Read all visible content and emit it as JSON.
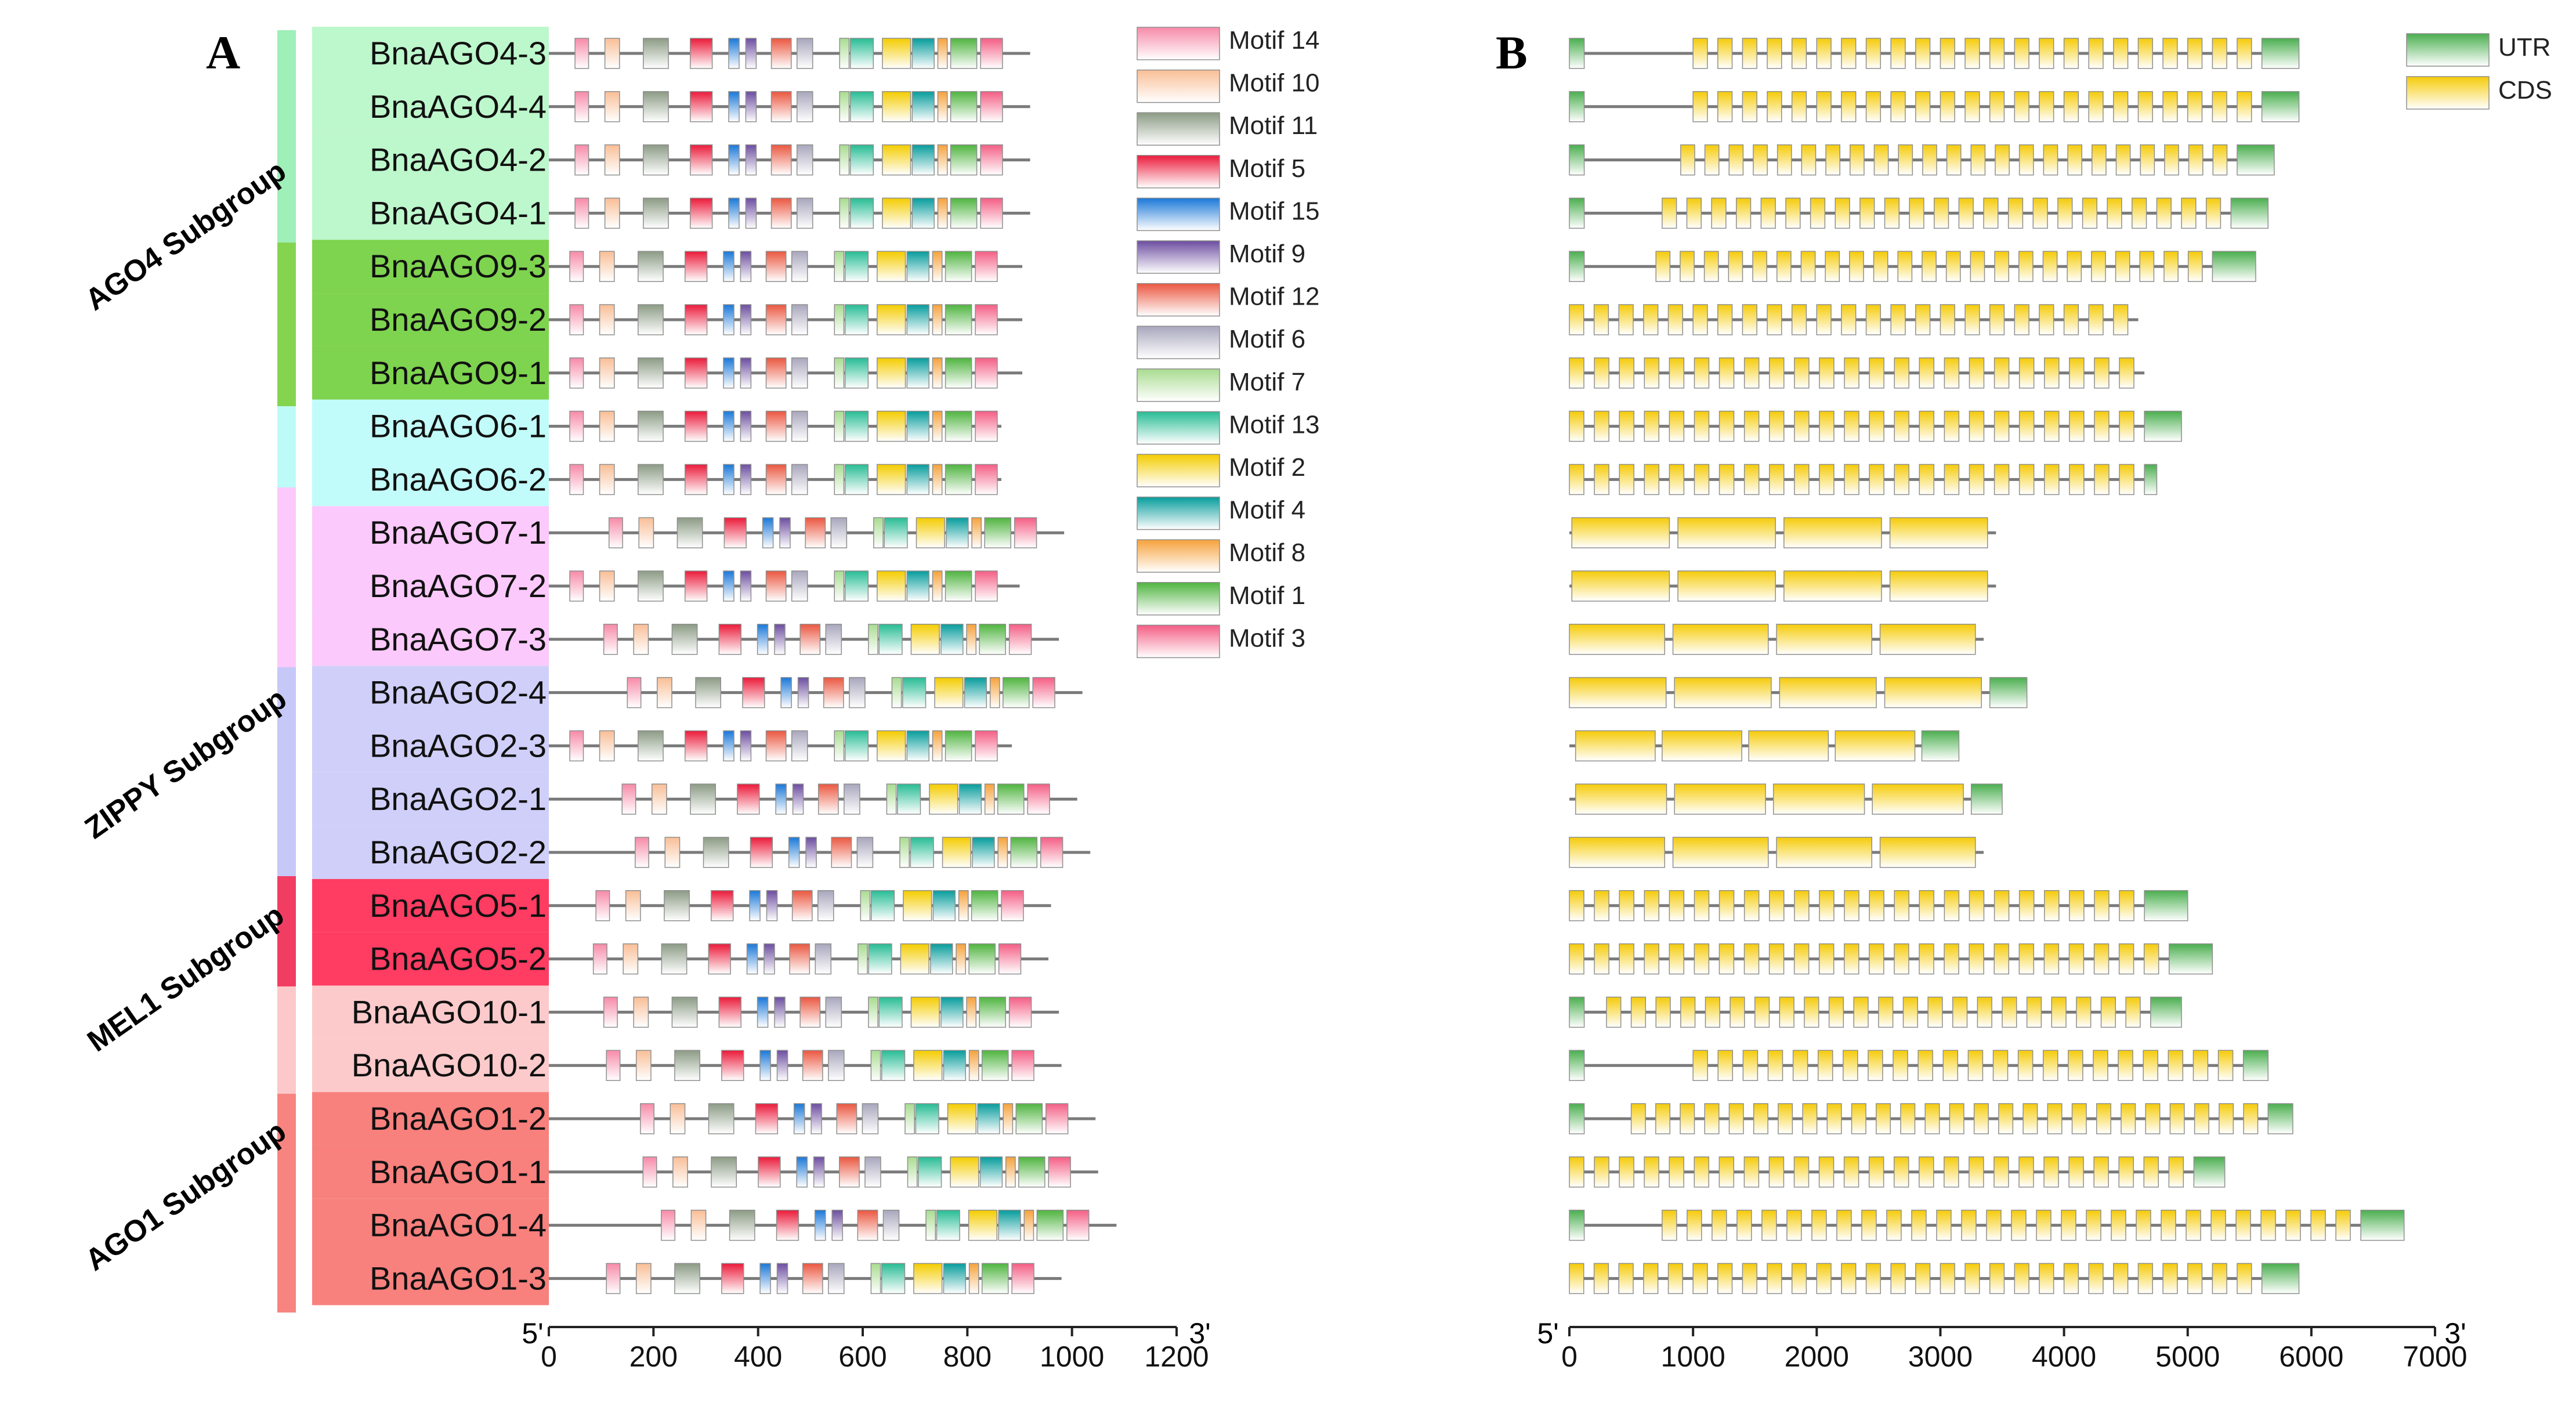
{
  "panels": {
    "a_label": "A",
    "b_label": "B"
  },
  "subgroups": [
    {
      "name": "AGO4 Subgroup",
      "color": "#9EEFB8"
    },
    {
      "name": "ZIPPY Subgroup",
      "color": "#C6C8F7"
    },
    {
      "name": "MEL1 Subgroup",
      "color": "#F23D63"
    },
    {
      "name": "AGO1 Subgroup",
      "color": "#F57F7F"
    }
  ],
  "gene_colors": {
    "AGO4": "#BDF7CC",
    "AGO9": "#7ED34F",
    "AGO6": "#C2FCFA",
    "AGO7": "#FBC9FB",
    "AGO2": "#CFCFFA",
    "AGO5": "#FF3C61",
    "AGO10": "#FCCACB",
    "AGO1": "#F8807D"
  },
  "motif_legend": [
    {
      "name": "Motif 14",
      "color": "#F78AA8"
    },
    {
      "name": "Motif 10",
      "color": "#F9BE96"
    },
    {
      "name": "Motif 11",
      "color": "#8C9B85"
    },
    {
      "name": "Motif 5",
      "color": "#EB1A3A"
    },
    {
      "name": "Motif 15",
      "color": "#1A78D8"
    },
    {
      "name": "Motif 9",
      "color": "#6C4DA0"
    },
    {
      "name": "Motif 12",
      "color": "#EA5740"
    },
    {
      "name": "Motif 6",
      "color": "#A8A6BC"
    },
    {
      "name": "Motif 7",
      "color": "#A8DC90"
    },
    {
      "name": "Motif 13",
      "color": "#27BC94"
    },
    {
      "name": "Motif 2",
      "color": "#F4CC00"
    },
    {
      "name": "Motif 4",
      "color": "#069C9C"
    },
    {
      "name": "Motif 8",
      "color": "#F6A23C"
    },
    {
      "name": "Motif 1",
      "color": "#4FB43F"
    },
    {
      "name": "Motif 3",
      "color": "#F45E85"
    }
  ],
  "structure_legend": [
    {
      "name": "UTR",
      "color": "#4BAE4F"
    },
    {
      "name": "CDS",
      "color": "#F5CB09"
    }
  ],
  "axis_a": {
    "five_prime": "5'",
    "three_prime": "3'",
    "ticks": [
      "0",
      "200",
      "400",
      "600",
      "800",
      "1000",
      "1200"
    ],
    "max": 1200
  },
  "axis_b": {
    "five_prime": "5'",
    "three_prime": "3'",
    "ticks": [
      "0",
      "1000",
      "2000",
      "3000",
      "4000",
      "5000",
      "6000",
      "7000"
    ],
    "max": 7000
  },
  "chart_data": {
    "type": "gene-structure-and-motif-diagram",
    "genes": [
      {
        "name": "BnaAGO4-3",
        "family": "AGO4",
        "protein_length": 920,
        "gene_length": 5900,
        "cds_start": 1000,
        "cds_end": 5600
      },
      {
        "name": "BnaAGO4-4",
        "family": "AGO4",
        "protein_length": 920,
        "gene_length": 5900,
        "cds_start": 1000,
        "cds_end": 5600
      },
      {
        "name": "BnaAGO4-2",
        "family": "AGO4",
        "protein_length": 920,
        "gene_length": 5700,
        "cds_start": 900,
        "cds_end": 5400
      },
      {
        "name": "BnaAGO4-1",
        "family": "AGO4",
        "protein_length": 920,
        "gene_length": 5650,
        "cds_start": 750,
        "cds_end": 5350
      },
      {
        "name": "BnaAGO9-3",
        "family": "AGO9",
        "protein_length": 905,
        "gene_length": 5550,
        "cds_start": 700,
        "cds_end": 5200
      },
      {
        "name": "BnaAGO9-2",
        "family": "AGO9",
        "protein_length": 905,
        "gene_length": 4600,
        "cds_start": 0,
        "cds_end": 4600
      },
      {
        "name": "BnaAGO9-1",
        "family": "AGO9",
        "protein_length": 905,
        "gene_length": 4650,
        "cds_start": 0,
        "cds_end": 4650
      },
      {
        "name": "BnaAGO6-1",
        "family": "AGO6",
        "protein_length": 865,
        "gene_length": 4950,
        "cds_start": 0,
        "cds_end": 4650
      },
      {
        "name": "BnaAGO6-2",
        "family": "AGO6",
        "protein_length": 865,
        "gene_length": 4750,
        "cds_start": 0,
        "cds_end": 4650
      },
      {
        "name": "BnaAGO7-1",
        "family": "AGO7",
        "protein_length": 985,
        "gene_length": 3450,
        "cds_start": 20,
        "cds_end": 3450
      },
      {
        "name": "BnaAGO7-2",
        "family": "AGO7",
        "protein_length": 900,
        "gene_length": 3450,
        "cds_start": 20,
        "cds_end": 3450
      },
      {
        "name": "BnaAGO7-3",
        "family": "AGO7",
        "protein_length": 975,
        "gene_length": 3350,
        "cds_start": 0,
        "cds_end": 3350
      },
      {
        "name": "BnaAGO2-4",
        "family": "AGO2",
        "protein_length": 1020,
        "gene_length": 3700,
        "cds_start": 0,
        "cds_end": 3400
      },
      {
        "name": "BnaAGO2-3",
        "family": "AGO2",
        "protein_length": 885,
        "gene_length": 3150,
        "cds_start": 50,
        "cds_end": 2850
      },
      {
        "name": "BnaAGO2-1",
        "family": "AGO2",
        "protein_length": 1010,
        "gene_length": 3500,
        "cds_start": 50,
        "cds_end": 3250
      },
      {
        "name": "BnaAGO2-2",
        "family": "AGO2",
        "protein_length": 1035,
        "gene_length": 3350,
        "cds_start": 0,
        "cds_end": 3350
      },
      {
        "name": "BnaAGO5-1",
        "family": "AGO5",
        "protein_length": 960,
        "gene_length": 5000,
        "cds_start": 0,
        "cds_end": 4650
      },
      {
        "name": "BnaAGO5-2",
        "family": "AGO5",
        "protein_length": 955,
        "gene_length": 5200,
        "cds_start": 0,
        "cds_end": 4850
      },
      {
        "name": "BnaAGO10-1",
        "family": "AGO10",
        "protein_length": 975,
        "gene_length": 4950,
        "cds_start": 300,
        "cds_end": 4700
      },
      {
        "name": "BnaAGO10-2",
        "family": "AGO10",
        "protein_length": 980,
        "gene_length": 5650,
        "cds_start": 1000,
        "cds_end": 5450
      },
      {
        "name": "BnaAGO1-2",
        "family": "AGO1",
        "protein_length": 1045,
        "gene_length": 5850,
        "cds_start": 500,
        "cds_end": 5650
      },
      {
        "name": "BnaAGO1-1",
        "family": "AGO1",
        "protein_length": 1050,
        "gene_length": 5300,
        "cds_start": 0,
        "cds_end": 5050
      },
      {
        "name": "BnaAGO1-4",
        "family": "AGO1",
        "protein_length": 1085,
        "gene_length": 6750,
        "cds_start": 750,
        "cds_end": 6400
      },
      {
        "name": "BnaAGO1-3",
        "family": "AGO1",
        "protein_length": 980,
        "gene_length": 5900,
        "cds_start": 0,
        "cds_end": 5600
      }
    ],
    "xlabel": "",
    "ylabel": ""
  }
}
